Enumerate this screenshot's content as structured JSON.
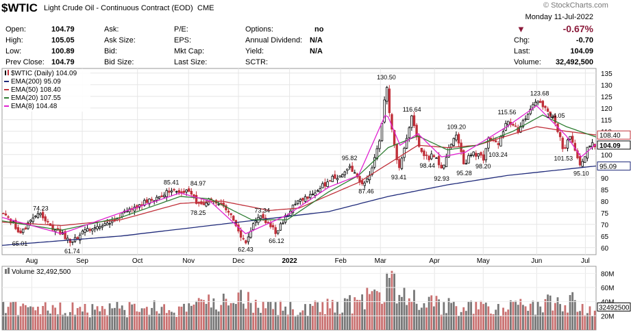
{
  "header": {
    "symbol": "$WTIC",
    "name": "Light Crude Oil - Continuous Contract (EOD)",
    "exchange": "CME",
    "watermark": "© StockCharts.com",
    "date": "Monday  11-Jul-2022",
    "change_pct": "-0.67%",
    "direction": "down",
    "down_color": "#8b1a3a"
  },
  "stats": {
    "open_label": "Open:",
    "open": "104.79",
    "high_label": "High:",
    "high": "105.05",
    "low_label": "Low:",
    "low": "100.89",
    "prev_label": "Prev Close:",
    "prev": "104.79",
    "ask_label": "Ask:",
    "asksize_label": "Ask Size:",
    "bid_label": "Bid:",
    "bidsize_label": "Bid Size:",
    "pe_label": "P/E:",
    "eps_label": "EPS:",
    "mktcap_label": "Mkt Cap:",
    "lastsize_label": "Last Size:",
    "options_label": "Options:",
    "options": "no",
    "div_label": "Annual Dividend:",
    "div": "N/A",
    "yield_label": "Yield:",
    "yield": "N/A",
    "sctr_label": "SCTR:",
    "chg_label": "Chg:",
    "chg": "-0.70",
    "last_label": "Last:",
    "last": "104.09",
    "vol_label": "Volume:",
    "volume": "32,492,500"
  },
  "chart_data": {
    "type": "candlestick",
    "legend": [
      {
        "label": "$WTIC (Daily) 104.09",
        "color": "#000000"
      },
      {
        "label": "EMA(200) 95.09",
        "color": "#1f2a7a"
      },
      {
        "label": "EMA(50) 108.40",
        "color": "#c0303a"
      },
      {
        "label": "EMA(20) 107.55",
        "color": "#2e7d32"
      },
      {
        "label": "EMA(8) 104.48",
        "color": "#e020d0"
      }
    ],
    "y_ticks": [
      60,
      65,
      70,
      75,
      80,
      85,
      90,
      95,
      100,
      105,
      110,
      115,
      120,
      125,
      130,
      135
    ],
    "ylim": [
      57,
      137
    ],
    "x_labels": [
      {
        "t": "Aug",
        "x": 0.05
      },
      {
        "t": "Sep",
        "x": 0.135
      },
      {
        "t": "Oct",
        "x": 0.228
      },
      {
        "t": "Nov",
        "x": 0.314
      },
      {
        "t": "Dec",
        "x": 0.398
      },
      {
        "t": "2022",
        "x": 0.484
      },
      {
        "t": "Feb",
        "x": 0.57
      },
      {
        "t": "Mar",
        "x": 0.637
      },
      {
        "t": "Apr",
        "x": 0.728
      },
      {
        "t": "May",
        "x": 0.81
      },
      {
        "t": "Jun",
        "x": 0.9
      },
      {
        "t": "Jul",
        "x": 0.982
      }
    ],
    "price_path": [
      [
        0.0,
        74.5
      ],
      [
        0.01,
        73.0
      ],
      [
        0.025,
        68.0
      ],
      [
        0.03,
        65.01
      ],
      [
        0.05,
        72.0
      ],
      [
        0.065,
        74.23
      ],
      [
        0.085,
        68.5
      ],
      [
        0.1,
        66.0
      ],
      [
        0.118,
        61.74
      ],
      [
        0.135,
        67.0
      ],
      [
        0.16,
        69.0
      ],
      [
        0.18,
        71.0
      ],
      [
        0.205,
        74.5
      ],
      [
        0.228,
        78.0
      ],
      [
        0.25,
        80.5
      ],
      [
        0.265,
        82.0
      ],
      [
        0.285,
        85.41
      ],
      [
        0.3,
        83.5
      ],
      [
        0.314,
        84.97
      ],
      [
        0.33,
        78.25
      ],
      [
        0.35,
        80.5
      ],
      [
        0.37,
        78.0
      ],
      [
        0.387,
        73.0
      ],
      [
        0.398,
        66.0
      ],
      [
        0.41,
        62.43
      ],
      [
        0.423,
        70.5
      ],
      [
        0.438,
        73.34
      ],
      [
        0.45,
        70.0
      ],
      [
        0.462,
        66.12
      ],
      [
        0.484,
        76.0
      ],
      [
        0.5,
        80.0
      ],
      [
        0.52,
        83.0
      ],
      [
        0.54,
        86.5
      ],
      [
        0.557,
        90.0
      ],
      [
        0.57,
        91.0
      ],
      [
        0.585,
        95.82
      ],
      [
        0.6,
        89.0
      ],
      [
        0.613,
        87.46
      ],
      [
        0.625,
        96.0
      ],
      [
        0.637,
        108.0
      ],
      [
        0.647,
        130.5
      ],
      [
        0.655,
        112.0
      ],
      [
        0.668,
        93.41
      ],
      [
        0.68,
        106.0
      ],
      [
        0.69,
        116.64
      ],
      [
        0.7,
        104.0
      ],
      [
        0.716,
        98.44
      ],
      [
        0.728,
        100.0
      ],
      [
        0.74,
        92.93
      ],
      [
        0.752,
        102.0
      ],
      [
        0.765,
        109.2
      ],
      [
        0.778,
        95.28
      ],
      [
        0.79,
        101.0
      ],
      [
        0.81,
        98.2
      ],
      [
        0.82,
        108.0
      ],
      [
        0.835,
        103.24
      ],
      [
        0.85,
        115.56
      ],
      [
        0.87,
        110.0
      ],
      [
        0.89,
        120.0
      ],
      [
        0.905,
        123.68
      ],
      [
        0.918,
        118.0
      ],
      [
        0.932,
        114.05
      ],
      [
        0.945,
        101.53
      ],
      [
        0.955,
        108.0
      ],
      [
        0.968,
        99.0
      ],
      [
        0.975,
        95.1
      ],
      [
        0.988,
        104.09
      ]
    ],
    "ema200": [
      [
        0.0,
        61.0
      ],
      [
        0.2,
        65.0
      ],
      [
        0.4,
        71.0
      ],
      [
        0.55,
        75.5
      ],
      [
        0.65,
        82.0
      ],
      [
        0.75,
        87.0
      ],
      [
        0.85,
        91.0
      ],
      [
        1.0,
        95.09
      ]
    ],
    "ema50": [
      [
        0.0,
        71.0
      ],
      [
        0.1,
        69.5
      ],
      [
        0.2,
        72.0
      ],
      [
        0.3,
        79.0
      ],
      [
        0.37,
        80.0
      ],
      [
        0.45,
        76.0
      ],
      [
        0.5,
        77.0
      ],
      [
        0.6,
        88.0
      ],
      [
        0.65,
        96.0
      ],
      [
        0.7,
        104.0
      ],
      [
        0.75,
        103.0
      ],
      [
        0.8,
        104.0
      ],
      [
        0.85,
        108.0
      ],
      [
        0.9,
        112.0
      ],
      [
        0.95,
        110.0
      ],
      [
        1.0,
        108.4
      ]
    ],
    "ema20": [
      [
        0.0,
        71.5
      ],
      [
        0.1,
        67.5
      ],
      [
        0.2,
        73.0
      ],
      [
        0.3,
        82.0
      ],
      [
        0.35,
        81.0
      ],
      [
        0.42,
        72.0
      ],
      [
        0.48,
        72.0
      ],
      [
        0.55,
        84.0
      ],
      [
        0.6,
        91.0
      ],
      [
        0.65,
        103.0
      ],
      [
        0.7,
        108.0
      ],
      [
        0.75,
        102.0
      ],
      [
        0.8,
        104.0
      ],
      [
        0.86,
        110.0
      ],
      [
        0.91,
        117.0
      ],
      [
        0.95,
        112.0
      ],
      [
        1.0,
        107.55
      ]
    ],
    "ema8": [
      [
        0.0,
        73.0
      ],
      [
        0.1,
        66.0
      ],
      [
        0.2,
        75.0
      ],
      [
        0.3,
        83.5
      ],
      [
        0.35,
        80.0
      ],
      [
        0.41,
        66.0
      ],
      [
        0.48,
        74.0
      ],
      [
        0.55,
        86.0
      ],
      [
        0.6,
        91.0
      ],
      [
        0.647,
        118.0
      ],
      [
        0.67,
        104.0
      ],
      [
        0.7,
        109.0
      ],
      [
        0.74,
        99.0
      ],
      [
        0.78,
        101.0
      ],
      [
        0.85,
        112.0
      ],
      [
        0.9,
        121.0
      ],
      [
        0.95,
        108.0
      ],
      [
        0.975,
        99.0
      ],
      [
        1.0,
        104.48
      ]
    ],
    "annotations": [
      {
        "t": "74.23",
        "x": 0.065,
        "y": 74.23,
        "pos": "above"
      },
      {
        "t": "65.01",
        "x": 0.03,
        "y": 65.01,
        "pos": "below"
      },
      {
        "t": "61.74",
        "x": 0.118,
        "y": 61.74,
        "pos": "below"
      },
      {
        "t": "85.41",
        "x": 0.285,
        "y": 85.41,
        "pos": "above"
      },
      {
        "t": "84.97",
        "x": 0.33,
        "y": 84.97,
        "pos": "above"
      },
      {
        "t": "78.25",
        "x": 0.33,
        "y": 78.25,
        "pos": "below"
      },
      {
        "t": "73.34",
        "x": 0.438,
        "y": 73.34,
        "pos": "above"
      },
      {
        "t": "62.43",
        "x": 0.41,
        "y": 62.43,
        "pos": "below"
      },
      {
        "t": "66.12",
        "x": 0.462,
        "y": 66.12,
        "pos": "below"
      },
      {
        "t": "95.82",
        "x": 0.585,
        "y": 95.82,
        "pos": "above"
      },
      {
        "t": "87.46",
        "x": 0.613,
        "y": 87.46,
        "pos": "below"
      },
      {
        "t": "130.50",
        "x": 0.647,
        "y": 130.5,
        "pos": "above"
      },
      {
        "t": "93.41",
        "x": 0.668,
        "y": 93.41,
        "pos": "below"
      },
      {
        "t": "116.64",
        "x": 0.69,
        "y": 116.64,
        "pos": "above"
      },
      {
        "t": "98.44",
        "x": 0.716,
        "y": 98.44,
        "pos": "below"
      },
      {
        "t": "92.93",
        "x": 0.74,
        "y": 92.93,
        "pos": "below"
      },
      {
        "t": "109.20",
        "x": 0.765,
        "y": 109.2,
        "pos": "above"
      },
      {
        "t": "95.28",
        "x": 0.778,
        "y": 95.28,
        "pos": "below"
      },
      {
        "t": "98.20",
        "x": 0.81,
        "y": 98.2,
        "pos": "below"
      },
      {
        "t": "103.24",
        "x": 0.835,
        "y": 103.24,
        "pos": "below"
      },
      {
        "t": "115.56",
        "x": 0.85,
        "y": 115.56,
        "pos": "above"
      },
      {
        "t": "123.68",
        "x": 0.905,
        "y": 123.68,
        "pos": "above"
      },
      {
        "t": "114.05",
        "x": 0.932,
        "y": 114.05,
        "pos": "above"
      },
      {
        "t": "101.53",
        "x": 0.945,
        "y": 101.53,
        "pos": "below"
      },
      {
        "t": "95.10",
        "x": 0.975,
        "y": 95.1,
        "pos": "below"
      }
    ],
    "right_tags": [
      {
        "t": "108.40",
        "y": 108.4,
        "color": "#c0303a"
      },
      {
        "t": "104.09",
        "y": 104.09,
        "color": "#000000"
      },
      {
        "t": "95.09",
        "y": 95.09,
        "color": "#1f2a7a"
      }
    ],
    "volume": {
      "legend": "Volume 32,492,500",
      "y_ticks": [
        "80M",
        "60M",
        "40M",
        "20M"
      ],
      "y_values": [
        80,
        60,
        40,
        20
      ],
      "ylim": [
        0,
        90
      ],
      "last_tag": "32492500",
      "level_path": [
        [
          0.0,
          35
        ],
        [
          0.15,
          30
        ],
        [
          0.3,
          33
        ],
        [
          0.4,
          45
        ],
        [
          0.5,
          30
        ],
        [
          0.6,
          40
        ],
        [
          0.65,
          70
        ],
        [
          0.7,
          40
        ],
        [
          0.8,
          33
        ],
        [
          0.9,
          35
        ],
        [
          0.95,
          45
        ],
        [
          1.0,
          32
        ]
      ]
    }
  }
}
